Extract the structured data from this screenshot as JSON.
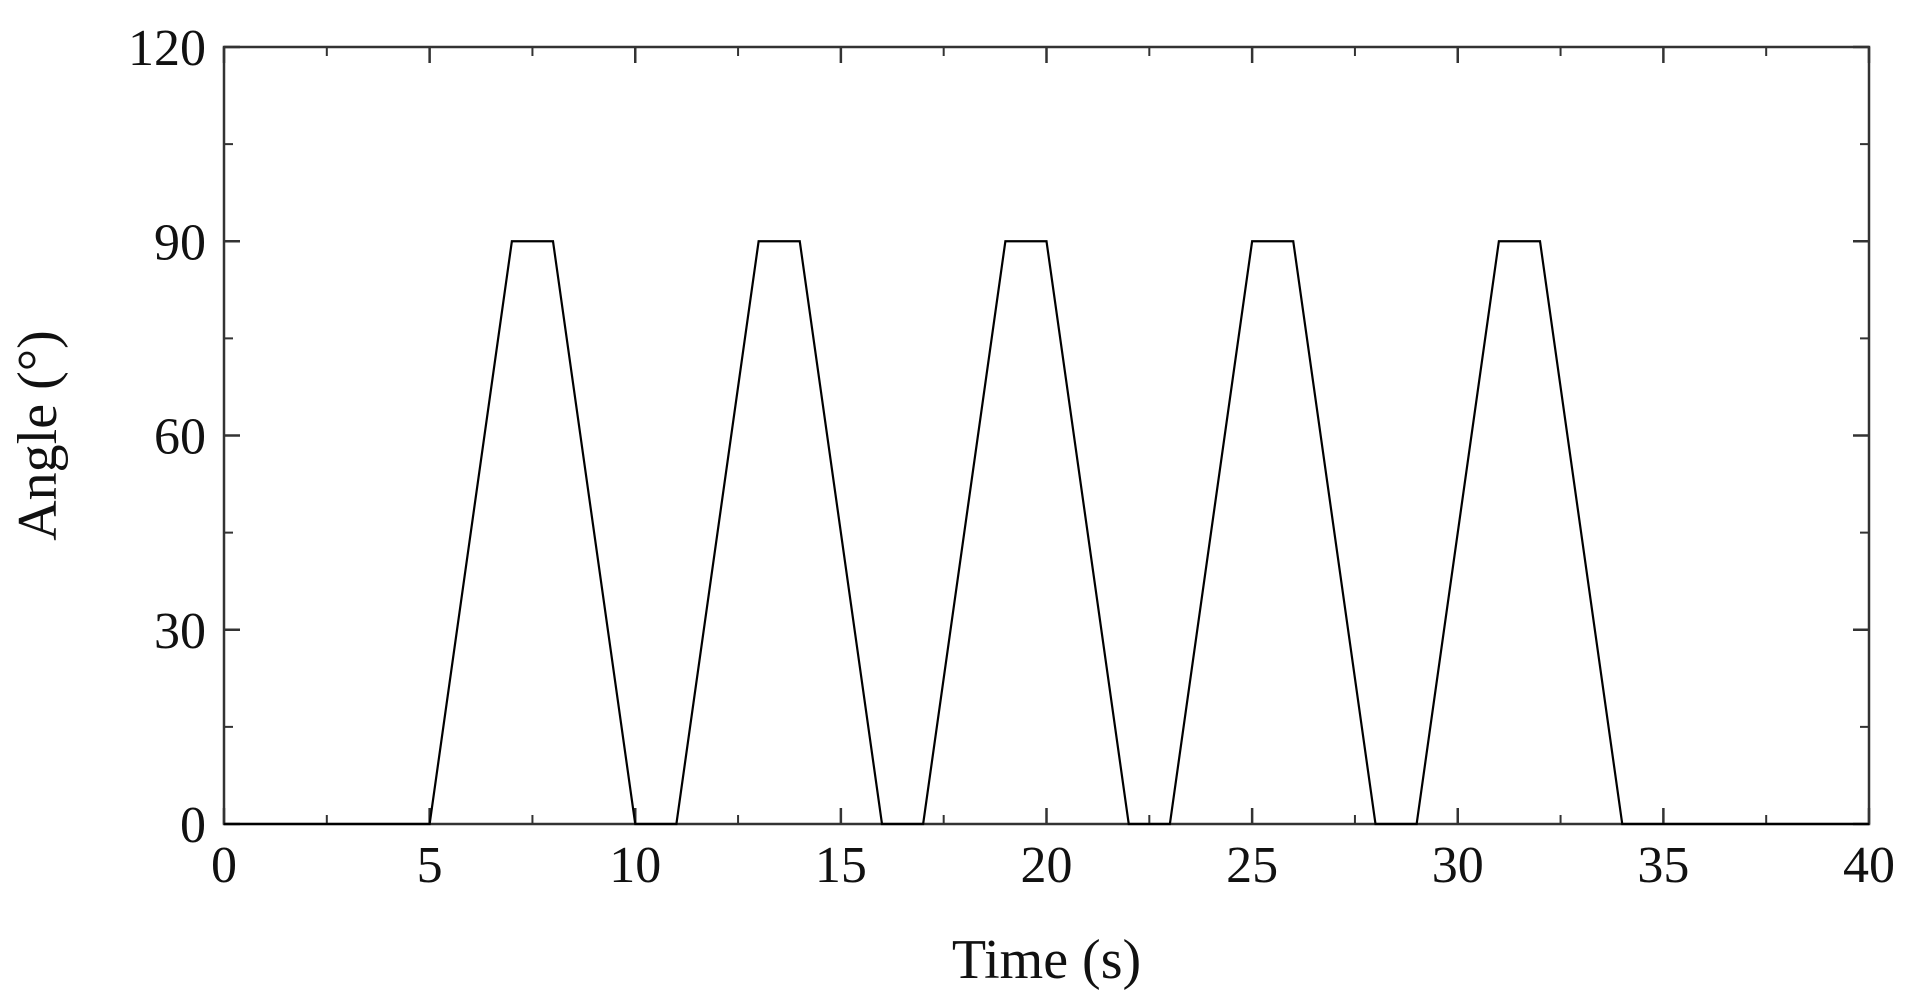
{
  "chart_data": {
    "type": "line",
    "title": "",
    "xlabel": "Time (s)",
    "ylabel": "Angle (°)",
    "xlim": [
      0,
      40
    ],
    "ylim": [
      0,
      120
    ],
    "xticks": [
      0,
      5,
      10,
      15,
      20,
      25,
      30,
      35,
      40
    ],
    "yticks": [
      0,
      30,
      60,
      90,
      120
    ],
    "xticks_minor": [
      2.5,
      7.5,
      12.5,
      17.5,
      22.5,
      27.5,
      32.5,
      37.5
    ],
    "yticks_minor": [
      15,
      45,
      75,
      105
    ],
    "grid": false,
    "legend": "none",
    "colors": {
      "line": "#000000",
      "axes": "#333333"
    },
    "series": [
      {
        "x": [
          0,
          5,
          7,
          8,
          10,
          11,
          13,
          14,
          16,
          17,
          19,
          20,
          22,
          23,
          25,
          26,
          28,
          29,
          31,
          32,
          34,
          40
        ],
        "y": [
          0,
          0,
          90,
          90,
          0,
          0,
          90,
          90,
          0,
          0,
          90,
          90,
          0,
          0,
          90,
          90,
          0,
          0,
          90,
          90,
          0,
          0
        ]
      }
    ]
  }
}
